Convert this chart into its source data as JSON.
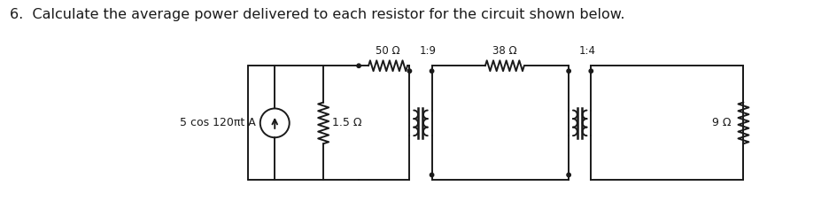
{
  "title": "6.  Calculate the average power delivered to each resistor for the circuit shown below.",
  "title_fontsize": 11.5,
  "bg_color": "#ffffff",
  "text_color": "#000000",
  "source_label": "5 cos 120πt A",
  "r1_label": "1.5 Ω",
  "r2_label": "50 Ω",
  "r3_label": "38 Ω",
  "r4_label": "9 Ω",
  "t1_label": "1:9",
  "t2_label": "1:4",
  "line_width": 1.4,
  "circuit_color": "#1a1a1a"
}
